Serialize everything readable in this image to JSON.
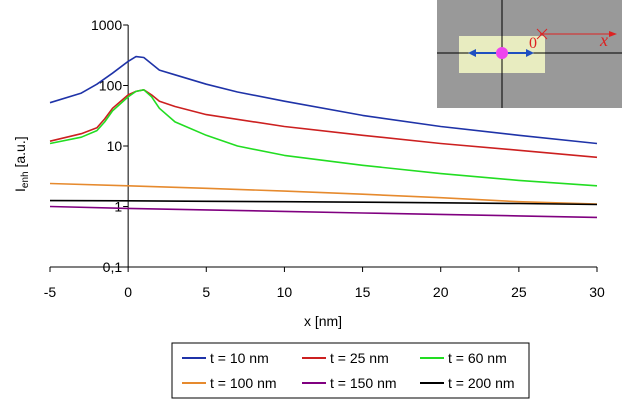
{
  "chart_data": {
    "type": "line",
    "title": "",
    "xlabel": "x [nm]",
    "ylabel_main": "I",
    "ylabel_sub": "enh",
    "ylabel_unit": " [a.u.]",
    "xlim": [
      -5,
      30
    ],
    "ylim": [
      0.1,
      1000
    ],
    "yscale": "log",
    "grid": false,
    "legend_position": "bottom",
    "x_ticks": [
      -5,
      0,
      5,
      10,
      15,
      20,
      25,
      30
    ],
    "x_tick_labels": [
      "-5",
      "0",
      "5",
      "10",
      "15",
      "20",
      "25",
      "30"
    ],
    "y_ticks": [
      0.1,
      1,
      10,
      100,
      1000
    ],
    "y_tick_labels": [
      "0,1",
      "1",
      "10",
      "100",
      "1000"
    ],
    "series": [
      {
        "name": "t = 10 nm",
        "color": "#1f33a8",
        "x": [
          -5,
          -3,
          -2,
          -1,
          0,
          0.5,
          1,
          2,
          3,
          5,
          7,
          10,
          15,
          20,
          25,
          30
        ],
        "y": [
          52,
          75,
          105,
          160,
          250,
          300,
          290,
          180,
          150,
          105,
          78,
          55,
          32,
          21,
          15,
          11
        ]
      },
      {
        "name": "t = 25 nm",
        "color": "#cc2020",
        "x": [
          -5,
          -3,
          -2,
          -1.5,
          -1,
          0,
          0.5,
          1,
          1.5,
          2,
          3,
          5,
          10,
          15,
          20,
          25,
          30
        ],
        "y": [
          12,
          16,
          20,
          28,
          42,
          70,
          80,
          85,
          70,
          55,
          45,
          33,
          21,
          15,
          11,
          8.5,
          6.5
        ]
      },
      {
        "name": "t = 60 nm",
        "color": "#22dd22",
        "x": [
          -5,
          -3,
          -2,
          -1.5,
          -1,
          0,
          0.5,
          1,
          1.5,
          2,
          3,
          5,
          7,
          10,
          15,
          20,
          25,
          30
        ],
        "y": [
          11,
          14,
          18,
          25,
          38,
          65,
          80,
          85,
          65,
          42,
          25,
          15,
          10,
          7,
          4.8,
          3.5,
          2.7,
          2.2
        ]
      },
      {
        "name": "t = 100 nm",
        "color": "#e68a2e",
        "x": [
          -5,
          0,
          5,
          10,
          15,
          20,
          25,
          30
        ],
        "y": [
          2.4,
          2.2,
          2.0,
          1.8,
          1.6,
          1.4,
          1.2,
          1.1
        ]
      },
      {
        "name": "t = 150 nm",
        "color": "#800080",
        "x": [
          -5,
          0,
          5,
          10,
          15,
          20,
          25,
          30
        ],
        "y": [
          1.0,
          0.93,
          0.88,
          0.83,
          0.78,
          0.74,
          0.7,
          0.66
        ]
      },
      {
        "name": "t = 200 nm",
        "color": "#000000",
        "x": [
          -5,
          0,
          5,
          10,
          15,
          20,
          25,
          30
        ],
        "y": [
          1.25,
          1.24,
          1.22,
          1.2,
          1.18,
          1.15,
          1.12,
          1.08
        ]
      }
    ]
  },
  "inset": {
    "origin_label": "0",
    "axis_label": "x",
    "background_color": "#999999",
    "slab_color": "#e8ecc0",
    "dot_color": "#ee44ee",
    "arrow_color": "#1f4fc0",
    "axis_color": "#dd2222"
  }
}
